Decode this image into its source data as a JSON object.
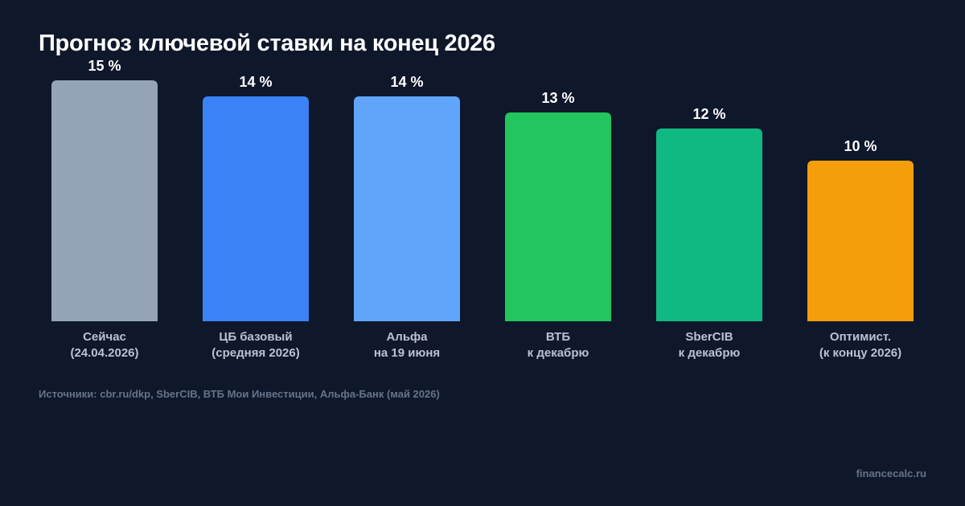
{
  "title": "Прогноз ключевой ставки на конец 2026",
  "source_note": "Источники: cbr.ru/dkp, SberCIB, ВТБ Мои Инвестиции, Альфа-Банк (май 2026)",
  "brand": "financecalc.ru",
  "chart_data": {
    "type": "bar",
    "title": "Прогноз ключевой ставки на конец 2026",
    "categories": [
      [
        "Сейчас",
        "(24.04.2026)"
      ],
      [
        "ЦБ базовый",
        "(средняя 2026)"
      ],
      [
        "Альфа",
        "на 19 июня"
      ],
      [
        "ВТБ",
        "к декабрю"
      ],
      [
        "SberCIB",
        "к декабрю"
      ],
      [
        "Оптимист.",
        "(к концу 2026)"
      ]
    ],
    "values": [
      15,
      14,
      14,
      13,
      12,
      10
    ],
    "value_labels": [
      "15 %",
      "14 %",
      "14 %",
      "13 %",
      "12 %",
      "10 %"
    ],
    "colors": [
      "#94a3b8",
      "#3b82f6",
      "#60a5fa",
      "#22c55e",
      "#10b981",
      "#f59e0b"
    ],
    "ylim": [
      0,
      15
    ],
    "grid": false,
    "legend": "none"
  }
}
